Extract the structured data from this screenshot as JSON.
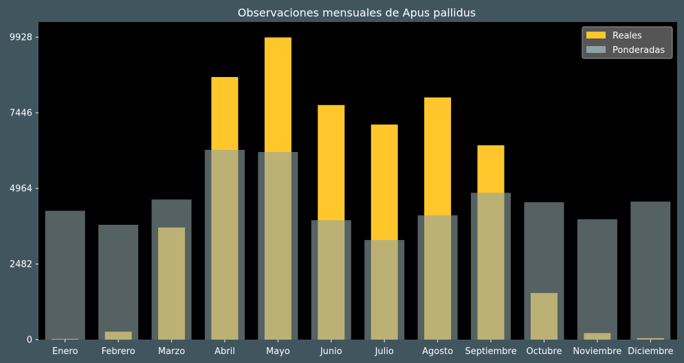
{
  "chart_data": {
    "type": "bar",
    "title": "Observaciones mensuales de Apus pallidus",
    "xlabel": "",
    "ylabel": "",
    "categories": [
      "Enero",
      "Febrero",
      "Marzo",
      "Abril",
      "Mayo",
      "Junio",
      "Julio",
      "Agosto",
      "Septiembre",
      "Octubre",
      "Noviembre",
      "Diciembre"
    ],
    "series": [
      {
        "name": "Reales",
        "color": "#ffc72c",
        "values": [
          25,
          260,
          3680,
          8620,
          9920,
          7700,
          7060,
          7950,
          6380,
          1530,
          215,
          48
        ]
      },
      {
        "name": "Ponderadas",
        "color": "#8fa1a6",
        "values": [
          4230,
          3770,
          4600,
          6230,
          6160,
          3920,
          3270,
          4080,
          4820,
          4510,
          3950,
          4530
        ]
      }
    ],
    "yticks": [
      0,
      2482,
      4964,
      7446,
      9928
    ],
    "ylim": [
      0,
      10426
    ],
    "grid": false,
    "legend_position": "top-right",
    "plot_background": "#000000",
    "figure_background": "#41555f"
  }
}
